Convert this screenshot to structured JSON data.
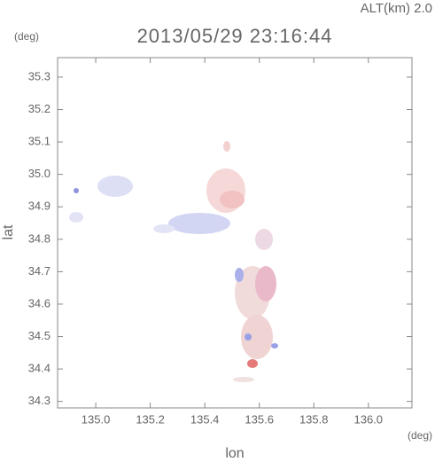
{
  "chart_data": {
    "type": "map",
    "title": "2013/05/29 23:16:44",
    "altitude_label": "ALT(km) 2.0",
    "y_unit": "(deg)",
    "x_unit": "(deg)",
    "xlabel": "lon",
    "ylabel": "lat",
    "xlim": [
      134.86,
      136.16
    ],
    "ylim": [
      34.28,
      35.36
    ],
    "xticks": [
      {
        "value": 135,
        "label": "135.0"
      },
      135.2,
      135.4,
      135.6,
      135.8,
      {
        "value": 136,
        "label": "136.0"
      }
    ],
    "yticks": [
      34.3,
      34.4,
      34.5,
      34.6,
      34.7,
      34.8,
      34.9,
      {
        "value": 35,
        "label": "35.0"
      },
      35.1,
      35.2,
      35.3
    ]
  }
}
